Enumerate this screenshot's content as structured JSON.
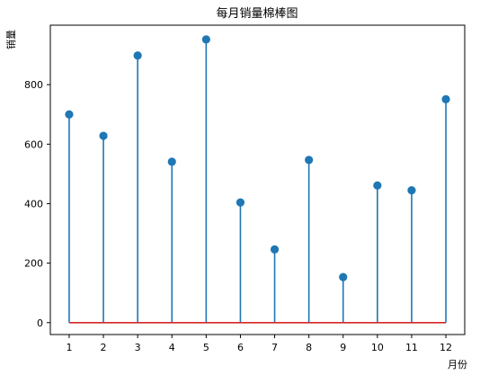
{
  "chart_data": {
    "type": "stem",
    "title": "每月销量棉棒图",
    "xlabel": "月份",
    "ylabel": "销量",
    "x": [
      1,
      2,
      3,
      4,
      5,
      6,
      7,
      8,
      9,
      10,
      11,
      12
    ],
    "values": [
      700,
      628,
      898,
      541,
      952,
      404,
      246,
      547,
      153,
      461,
      445,
      751
    ],
    "baseline": 0,
    "xlim": [
      0.45,
      12.55
    ],
    "ylim": [
      -40,
      1000
    ],
    "yticks": [
      0,
      200,
      400,
      600,
      800
    ],
    "xticks": [
      1,
      2,
      3,
      4,
      5,
      6,
      7,
      8,
      9,
      10,
      11,
      12
    ],
    "grid": false,
    "colors": {
      "stem": "#1f77b4",
      "marker": "#1f77b4",
      "baseline": "#d62728",
      "axis": "#000000"
    }
  }
}
